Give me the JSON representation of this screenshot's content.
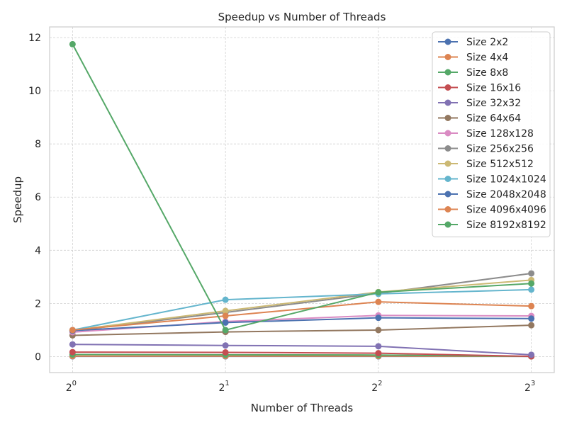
{
  "chart_data": {
    "type": "line",
    "title": "Speedup vs Number of Threads",
    "xlabel": "Number of Threads",
    "ylabel": "Speedup",
    "x_scale": "log2",
    "x": [
      1,
      2,
      4,
      8
    ],
    "x_tick_labels": [
      {
        "base": "2",
        "exp": "0"
      },
      {
        "base": "2",
        "exp": "1"
      },
      {
        "base": "2",
        "exp": "2"
      },
      {
        "base": "2",
        "exp": "3"
      }
    ],
    "ylim": [
      -0.6,
      12.4
    ],
    "y_ticks": [
      0,
      2,
      4,
      6,
      8,
      10,
      12
    ],
    "grid": true,
    "legend_position": "top-right",
    "series": [
      {
        "name": "Size 2x2",
        "color": "#4c72b0",
        "values": [
          0.01,
          0.01,
          0.01,
          0.01
        ]
      },
      {
        "name": "Size 4x4",
        "color": "#dd8452",
        "values": [
          0.02,
          0.02,
          0.02,
          0.01
        ]
      },
      {
        "name": "Size 8x8",
        "color": "#55a868",
        "values": [
          0.08,
          0.07,
          0.06,
          0.01
        ]
      },
      {
        "name": "Size 16x16",
        "color": "#c44e52",
        "values": [
          0.17,
          0.16,
          0.13,
          0.01
        ]
      },
      {
        "name": "Size 32x32",
        "color": "#8172b3",
        "values": [
          0.46,
          0.42,
          0.39,
          0.07
        ]
      },
      {
        "name": "Size 64x64",
        "color": "#937860",
        "values": [
          0.8,
          0.93,
          1.0,
          1.18
        ]
      },
      {
        "name": "Size 128x128",
        "color": "#da8bc3",
        "values": [
          0.92,
          1.32,
          1.55,
          1.53
        ]
      },
      {
        "name": "Size 256x256",
        "color": "#8c8c8c",
        "values": [
          0.97,
          1.66,
          2.38,
          3.13
        ]
      },
      {
        "name": "Size 512x512",
        "color": "#ccb974",
        "values": [
          0.99,
          1.72,
          2.43,
          2.88
        ]
      },
      {
        "name": "Size 1024x1024",
        "color": "#64b5cd",
        "values": [
          1.0,
          2.14,
          2.36,
          2.52
        ]
      },
      {
        "name": "Size 2048x2048",
        "color": "#4c72b0",
        "values": [
          0.98,
          1.28,
          1.46,
          1.43
        ]
      },
      {
        "name": "Size 4096x4096",
        "color": "#dd8452",
        "values": [
          1.0,
          1.53,
          2.06,
          1.9
        ]
      },
      {
        "name": "Size 8192x8192",
        "color": "#55a868",
        "values": [
          11.75,
          1.0,
          2.42,
          2.75
        ]
      }
    ]
  }
}
